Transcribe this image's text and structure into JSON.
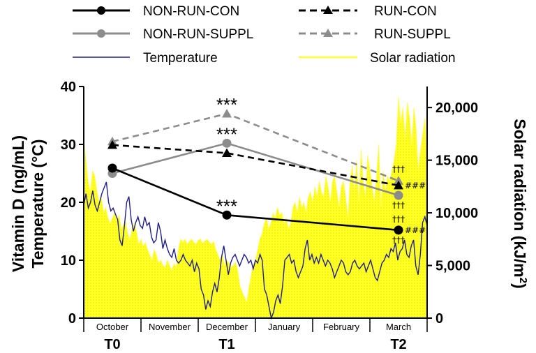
{
  "chart_data": {
    "type": "line",
    "legend": {
      "placement": "top",
      "entries": [
        {
          "name": "NON-RUN-CON",
          "color": "#000000",
          "dash": "solid",
          "marker": "circle"
        },
        {
          "name": "RUN-CON",
          "color": "#000000",
          "dash": "dashed",
          "marker": "triangle"
        },
        {
          "name": "NON-RUN-SUPPL",
          "color": "#8c8c8c",
          "dash": "solid",
          "marker": "circle"
        },
        {
          "name": "RUN-SUPPL",
          "color": "#8c8c8c",
          "dash": "dashed",
          "marker": "triangle"
        },
        {
          "name": "Temperature",
          "color": "#1e1e8c",
          "dash": "solid",
          "marker": "none"
        },
        {
          "name": "Solar radiation",
          "color": "#ffff33",
          "dash": "solid",
          "marker": "none"
        }
      ]
    },
    "y_left": {
      "title_line1": "Vitamin D (ng/mL)",
      "title_line2": "Temperature",
      "title_line2_unit": "(°C)",
      "range": [
        0,
        40
      ],
      "ticks": [
        "0",
        "10",
        "20",
        "30",
        "40"
      ]
    },
    "y_right": {
      "title": "Solar radiation (kJ/m",
      "title_sup": "2",
      "title_end": ")",
      "range": [
        0,
        22000
      ],
      "ticks": [
        "0",
        "5,000",
        "10,000",
        "15,000",
        "20,000"
      ]
    },
    "months": [
      "October",
      "November",
      "December",
      "January",
      "February",
      "March"
    ],
    "timepoints": [
      "T0",
      "T1",
      "T2"
    ],
    "series": [
      {
        "name": "NON-RUN-CON",
        "values": [
          25.9,
          17.8,
          15.2
        ]
      },
      {
        "name": "RUN-CON",
        "values": [
          29.9,
          28.5,
          22.9
        ]
      },
      {
        "name": "NON-RUN-SUPPL",
        "values": [
          25.0,
          30.2,
          21.2
        ]
      },
      {
        "name": "RUN-SUPPL",
        "values": [
          30.5,
          35.3,
          23.7
        ]
      }
    ],
    "annotations": {
      "significance_t1": [
        "***",
        "***",
        "***"
      ],
      "dagger": "†††",
      "hash": "###"
    },
    "temperature_daily": [
      19.5,
      21.5,
      19,
      20,
      22,
      19.5,
      18.5,
      20,
      21.5,
      22.5,
      23.5,
      20,
      18.5,
      19,
      18,
      17,
      13.5,
      12.5,
      16,
      20,
      21,
      17,
      15,
      16.5,
      17.5,
      16,
      15.5,
      17.5,
      16,
      16.5,
      14,
      13,
      13.5,
      16.5,
      15,
      12,
      13.5,
      12,
      11,
      10.5,
      12,
      10,
      9.5,
      10,
      11,
      10,
      9.5,
      9,
      10,
      8,
      9.5,
      8.5,
      5,
      4,
      1.5,
      3,
      2,
      4.5,
      6,
      4.5,
      7,
      10.5,
      12.5,
      10,
      7.5,
      9.5,
      10.5,
      11,
      10,
      9,
      10,
      11,
      10.5,
      9.5,
      10,
      8.5,
      10,
      9.5,
      11,
      10,
      5,
      4,
      2,
      0,
      1,
      3,
      4,
      2.5,
      5.5,
      10,
      10.5,
      11,
      9.5,
      10,
      8,
      7,
      8,
      9,
      12,
      13.5,
      10,
      11,
      9.5,
      10.5,
      9.5,
      11,
      10,
      9,
      10,
      9.5,
      8.5,
      7,
      8,
      9,
      10,
      9.5,
      8,
      7.5,
      8,
      9.5,
      10,
      9,
      8.5,
      9,
      9.5,
      8,
      9,
      10,
      8.5,
      7,
      6.5,
      8,
      9.5,
      10,
      11,
      10.5,
      12,
      11.5,
      13,
      10,
      11.5,
      12,
      13.5,
      11,
      10.5,
      12.5,
      13.5,
      9,
      7.5,
      11,
      16.5,
      17.5,
      16
    ],
    "solar_daily": [
      17000,
      15000,
      13000,
      12000,
      14000,
      13500,
      12000,
      11000,
      11500,
      10000,
      10500,
      9500,
      9000,
      9500,
      10000,
      9200,
      9800,
      8500,
      8800,
      9200,
      8000,
      7500,
      8500,
      9000,
      8200,
      7000,
      7500,
      6800,
      7200,
      6500,
      6000,
      5500,
      6500,
      6000,
      5200,
      5500,
      5000,
      4800,
      5500,
      5000,
      4500,
      5200,
      4800,
      6500,
      7500,
      7200,
      7500,
      7000,
      7300,
      7500,
      7200,
      7000,
      7400,
      7500,
      7100,
      7300,
      7500,
      7200,
      7000,
      7300,
      6500,
      6000,
      5500,
      6000,
      5000,
      5500,
      5200,
      4800,
      5000,
      5300,
      4500,
      3000,
      2500,
      2000,
      1500,
      2800,
      4000,
      5000,
      5500,
      6500,
      7500,
      8000,
      9000,
      9500,
      8500,
      9000,
      10000,
      9500,
      10500,
      9800,
      10000,
      9000,
      9500,
      8500,
      9000,
      10500,
      11000,
      10000,
      11500,
      10500,
      11000,
      10000,
      11500,
      12000,
      11000,
      12500,
      11500,
      13000,
      12000,
      11500,
      13500,
      12500,
      11000,
      13000,
      13500,
      12000,
      10500,
      12500,
      13000,
      11500,
      9500,
      13000,
      14500,
      12000,
      15000,
      11000,
      16000,
      13000,
      11500,
      15500,
      14000,
      12500,
      11000,
      13500,
      16500,
      10500,
      14000,
      12000,
      13500,
      13000,
      14000,
      15000,
      16500,
      21000,
      18500,
      20000,
      17000,
      20500,
      19000,
      16500,
      20000,
      18000,
      14000,
      16000,
      17500,
      19000,
      15000
    ]
  }
}
